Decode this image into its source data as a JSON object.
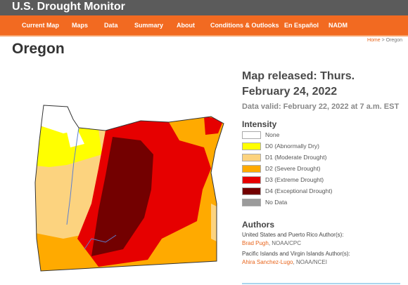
{
  "header": {
    "title": "U.S. Drought Monitor"
  },
  "nav": [
    "Current Map",
    "Maps",
    "Data",
    "Summary",
    "About",
    "Conditions & Outlooks",
    "En Español",
    "NADM"
  ],
  "breadcrumb": {
    "home": "Home",
    "current": "> Oregon"
  },
  "page_title": "Oregon",
  "map_info": {
    "released": "Map released: Thurs. February 24, 2022",
    "valid": "Data valid: February 22, 2022 at 7 a.m. EST"
  },
  "legend": {
    "title": "Intensity",
    "items": [
      {
        "label": "None",
        "color": "#ffffff"
      },
      {
        "label": "D0 (Abnormally Dry)",
        "color": "#ffff00"
      },
      {
        "label": "D1 (Moderate Drought)",
        "color": "#fcd37f"
      },
      {
        "label": "D2 (Severe Drought)",
        "color": "#ffaa00"
      },
      {
        "label": "D3 (Extreme Drought)",
        "color": "#e60000"
      },
      {
        "label": "D4 (Exceptional Drought)",
        "color": "#730000"
      },
      {
        "label": "No Data",
        "color": "#9b9b9b"
      }
    ]
  },
  "authors": {
    "title": "Authors",
    "groups": [
      {
        "heading": "United States and Puerto Rico Author(s):",
        "name": "Brad Pugh",
        "affiliation": ", NOAA/CPC"
      },
      {
        "heading": "Pacific Islands and Virgin Islands Author(s):",
        "name": "Ahira Sanchez-Lugo",
        "affiliation": ", NOAA/NCEI"
      }
    ]
  }
}
